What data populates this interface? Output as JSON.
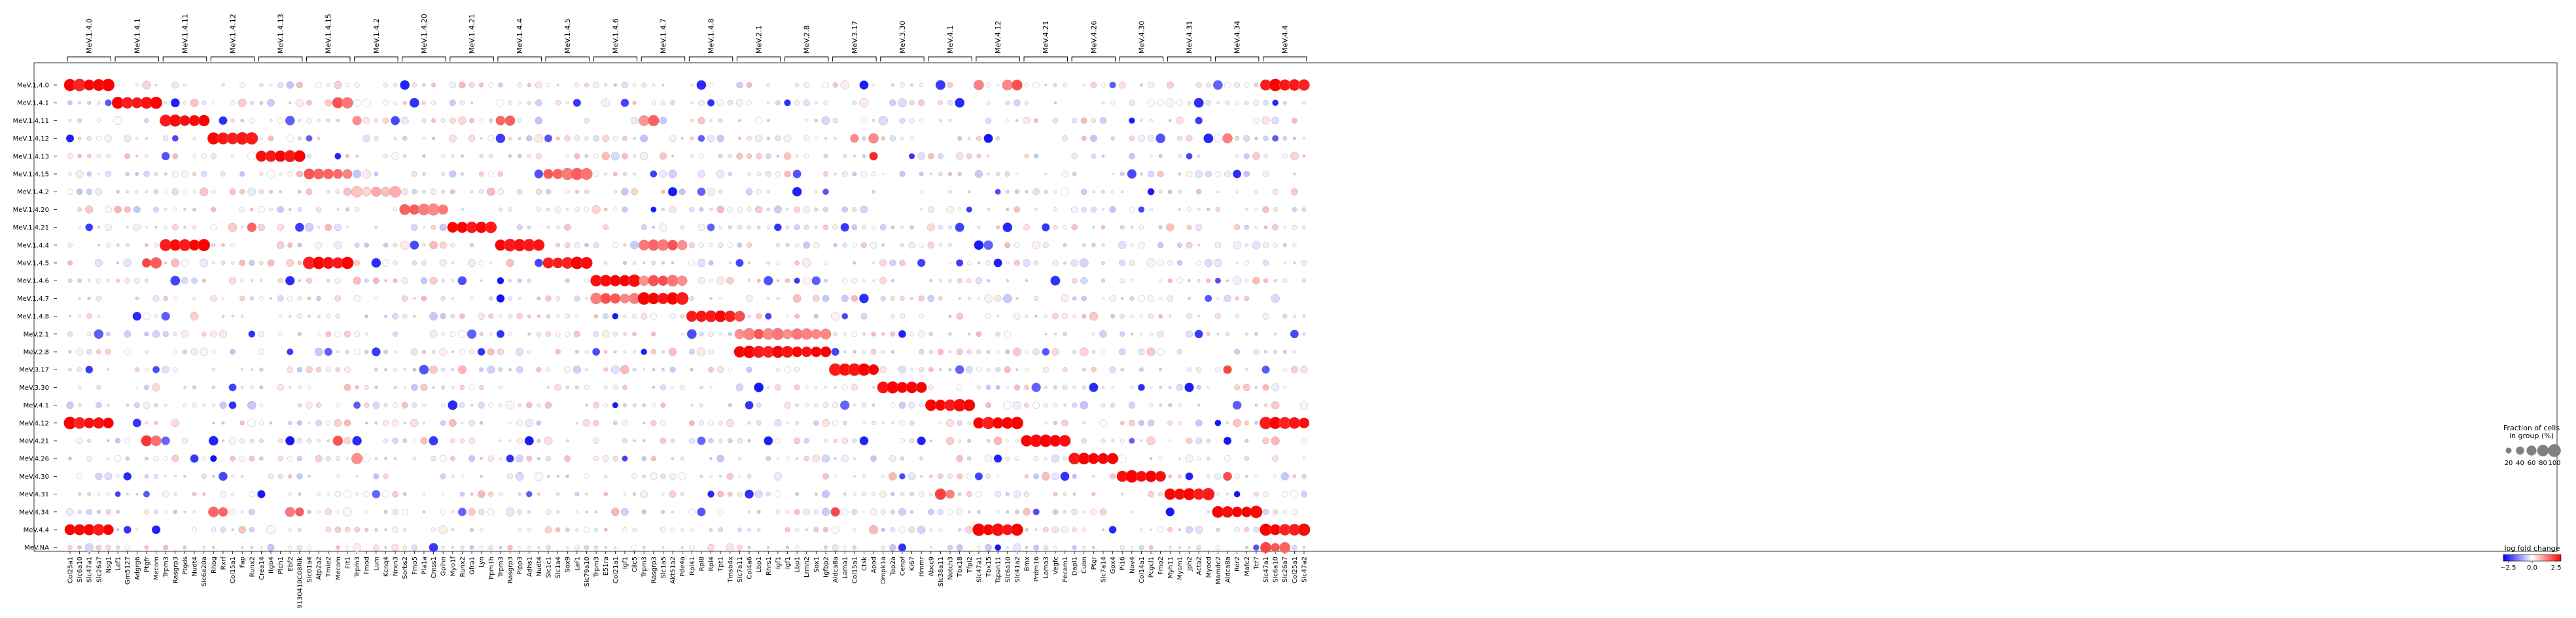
{
  "chart_data": {
    "type": "dotplot",
    "title": "",
    "xlabel": "",
    "ylabel": "",
    "rows": [
      "MeV.1.4.0",
      "MeV.1.4.1",
      "MeV.1.4.11",
      "MeV.1.4.12",
      "MeV.1.4.13",
      "MeV.1.4.15",
      "MeV.1.4.2",
      "MeV.1.4.20",
      "MeV.1.4.21",
      "MeV.1.4.4",
      "MeV.1.4.5",
      "MeV.1.4.6",
      "MeV.1.4.7",
      "MeV.1.4.8",
      "MeV.2.1",
      "MeV.2.8",
      "MeV.3.17",
      "MeV.3.30",
      "MeV.4.1",
      "MeV.4.12",
      "MeV.4.21",
      "MeV.4.26",
      "MeV.4.30",
      "MeV.4.31",
      "MeV.4.34",
      "MeV.4.4",
      "MeV.NA"
    ],
    "groups": [
      {
        "name": "MeV.1.4.0",
        "genes": [
          "Col25a1",
          "Slc6a10",
          "Slc47a1",
          "Slc26a7",
          "Nsg1"
        ]
      },
      {
        "name": "MeV.1.4.1",
        "genes": [
          "Lef1",
          "Gm5127",
          "Adgrg6",
          "Ptgfr",
          "Mecom"
        ]
      },
      {
        "name": "MeV.1.4.11",
        "genes": [
          "Trpm3",
          "Rasgrp3",
          "Ptgds",
          "Nudt4",
          "Slc6a20a"
        ]
      },
      {
        "name": "MeV.1.4.12",
        "genes": [
          "Rhbg",
          "Rxrf",
          "Col15a1",
          "Fap",
          "Runx2"
        ]
      },
      {
        "name": "MeV.1.4.13",
        "genes": [
          "Crea14",
          "Itgb4",
          "Plch1",
          "Ebf2",
          "9130410C08Rik"
        ]
      },
      {
        "name": "MeV.1.4.15",
        "genes": [
          "Slc01a4",
          "Atp2a2",
          "Tmie2",
          "Mecom",
          "Flt1"
        ]
      },
      {
        "name": "MeV.1.4.2",
        "genes": [
          "Trpm3",
          "Fmod",
          "Lum",
          "Kcnq4",
          "Nrxn3"
        ]
      },
      {
        "name": "MeV.1.4.20",
        "genes": [
          "Sorbs2",
          "Fmo5",
          "Pla1a",
          "Cmss1",
          "Gpihn"
        ]
      },
      {
        "name": "MeV.1.4.21",
        "genes": [
          "Myo1f",
          "Runx2",
          "Gfra1",
          "Lyn",
          "Ppm1h"
        ]
      },
      {
        "name": "MeV.1.4.4",
        "genes": [
          "Trpm3",
          "Rasgrp3",
          "Plpp3",
          "Adhs1",
          "Nudt4"
        ]
      },
      {
        "name": "MeV.1.4.5",
        "genes": [
          "Slc1c1",
          "Slc1a4",
          "Sox9",
          "Lef1",
          "Slc79a10"
        ]
      },
      {
        "name": "MeV.1.4.6",
        "genes": [
          "Trpm3",
          "E51ra",
          "Col21a1",
          "Igf1",
          "Cilc5"
        ]
      },
      {
        "name": "MeV.1.4.7",
        "genes": [
          "Trpm3",
          "Rasgrp3",
          "Slc1a5",
          "Akt51a2",
          "Pde4a"
        ]
      },
      {
        "name": "MeV.1.4.8",
        "genes": [
          "Rpl41",
          "Rpl8",
          "Rpl4",
          "Tpt1",
          "Tmsb4x"
        ]
      },
      {
        "name": "MeV.2.1",
        "genes": [
          "Slc7a11",
          "Col4a6",
          "Lbp1",
          "Rhrs1",
          "Igf1"
        ]
      },
      {
        "name": "MeV.2.8",
        "genes": [
          "Igf1",
          "Lbp1",
          "Lrmn2",
          "Sox1",
          "Igfbp2"
        ]
      },
      {
        "name": "MeV.3.17",
        "genes": [
          "Aldca8a",
          "Lama1",
          "Col15a1",
          "Ctsk",
          "Apod"
        ]
      },
      {
        "name": "MeV.3.30",
        "genes": [
          "Dmpk1a",
          "Top2a",
          "Cenpf",
          "Ki67",
          "Hmmr"
        ]
      },
      {
        "name": "MeV.4.1",
        "genes": [
          "Abcc9",
          "Slc38a11",
          "Notch3",
          "Tbx18",
          "Tfpi2"
        ]
      },
      {
        "name": "MeV.4.12",
        "genes": [
          "Slc47a1",
          "Tbx15",
          "Tspan11",
          "Slc6a10",
          "Slc41a2"
        ]
      },
      {
        "name": "MeV.4.21",
        "genes": [
          "Bmx",
          "Prdm16",
          "Lama3",
          "Vegfc",
          "Pecam1"
        ]
      },
      {
        "name": "MeV.4.26",
        "genes": [
          "Dapl1",
          "Cubn",
          "Ptgr",
          "Slc7a14",
          "Gpx4"
        ]
      },
      {
        "name": "MeV.4.30",
        "genes": [
          "Pi16",
          "Nov4",
          "Col14a1",
          "Pcgcl1",
          "Fmo2"
        ]
      },
      {
        "name": "MeV.4.31",
        "genes": [
          "Myh11",
          "Mysm1",
          "Jph2",
          "Acta2",
          "Myocd"
        ]
      },
      {
        "name": "MeV.4.34",
        "genes": [
          "Mamdc2",
          "Aldca8a",
          "Ror2",
          "Mafc2",
          "Tcf7"
        ]
      },
      {
        "name": "MeV.4.4",
        "genes": [
          "Slc47a1",
          "Slc6a10",
          "Slc26a7",
          "Col25a1",
          "Slc47a2"
        ]
      }
    ],
    "size_legend": {
      "title": "Fraction of cells\nin group (%)",
      "values": [
        20,
        40,
        60,
        80,
        100
      ],
      "labels": [
        "20",
        "40",
        "60",
        "80",
        "100"
      ]
    },
    "color_legend": {
      "title": "log fold change",
      "range": [
        -3,
        3
      ],
      "tick_values": [
        -2.5,
        0.0,
        2.5
      ],
      "tick_labels": [
        "−2.5",
        "0.0",
        "2.5"
      ],
      "colormap": "bwr"
    },
    "highlights": [
      {
        "row": 0,
        "group": 0,
        "mode": "strong"
      },
      {
        "row": 0,
        "group": 25,
        "mode": "strong"
      },
      {
        "row": 0,
        "group": 19,
        "mode": "partial",
        "genes": [
          0,
          3,
          4
        ]
      },
      {
        "row": 1,
        "group": 1,
        "mode": "strong"
      },
      {
        "row": 1,
        "group": 5,
        "mode": "partial",
        "genes": [
          3,
          4
        ]
      },
      {
        "row": 2,
        "group": 2,
        "mode": "strong"
      },
      {
        "row": 2,
        "group": 6,
        "mode": "partial",
        "genes": [
          0
        ]
      },
      {
        "row": 2,
        "group": 9,
        "mode": "partial",
        "genes": [
          0,
          1
        ]
      },
      {
        "row": 2,
        "group": 12,
        "mode": "partial",
        "genes": [
          0,
          1
        ]
      },
      {
        "row": 3,
        "group": 3,
        "mode": "strong"
      },
      {
        "row": 3,
        "group": 16,
        "mode": "partial",
        "genes": [
          2,
          4
        ]
      },
      {
        "row": 3,
        "group": 24,
        "mode": "partial",
        "genes": [
          1
        ]
      },
      {
        "row": 4,
        "group": 4,
        "mode": "strong"
      },
      {
        "row": 4,
        "group": 16,
        "mode": "partial",
        "genes": [
          4
        ]
      },
      {
        "row": 5,
        "group": 5,
        "mode": "medium"
      },
      {
        "row": 5,
        "group": 10,
        "mode": "medium"
      },
      {
        "row": 6,
        "group": 6,
        "mode": "light"
      },
      {
        "row": 7,
        "group": 7,
        "mode": "medium"
      },
      {
        "row": 8,
        "group": 8,
        "mode": "strong"
      },
      {
        "row": 8,
        "group": 3,
        "mode": "partial",
        "genes": [
          4
        ]
      },
      {
        "row": 9,
        "group": 9,
        "mode": "strong"
      },
      {
        "row": 9,
        "group": 2,
        "mode": "strong"
      },
      {
        "row": 9,
        "group": 12,
        "mode": "medium"
      },
      {
        "row": 10,
        "group": 10,
        "mode": "strong"
      },
      {
        "row": 10,
        "group": 5,
        "mode": "strong"
      },
      {
        "row": 10,
        "group": 1,
        "mode": "partial",
        "genes": [
          3,
          4
        ]
      },
      {
        "row": 11,
        "group": 11,
        "mode": "strong"
      },
      {
        "row": 11,
        "group": 12,
        "mode": "medium"
      },
      {
        "row": 12,
        "group": 12,
        "mode": "strong"
      },
      {
        "row": 12,
        "group": 11,
        "mode": "medium"
      },
      {
        "row": 13,
        "group": 13,
        "mode": "strong"
      },
      {
        "row": 13,
        "group": 14,
        "mode": "partial",
        "genes": [
          0
        ]
      },
      {
        "row": 14,
        "group": 14,
        "mode": "medium"
      },
      {
        "row": 14,
        "group": 15,
        "mode": "medium"
      },
      {
        "row": 15,
        "group": 15,
        "mode": "strong"
      },
      {
        "row": 15,
        "group": 14,
        "mode": "strong"
      },
      {
        "row": 16,
        "group": 16,
        "mode": "strong"
      },
      {
        "row": 16,
        "group": 24,
        "mode": "partial",
        "genes": [
          1
        ]
      },
      {
        "row": 17,
        "group": 17,
        "mode": "strong"
      },
      {
        "row": 18,
        "group": 18,
        "mode": "strong"
      },
      {
        "row": 19,
        "group": 19,
        "mode": "strong"
      },
      {
        "row": 19,
        "group": 0,
        "mode": "strong"
      },
      {
        "row": 19,
        "group": 25,
        "mode": "strong"
      },
      {
        "row": 20,
        "group": 20,
        "mode": "strong"
      },
      {
        "row": 20,
        "group": 1,
        "mode": "partial",
        "genes": [
          3,
          4
        ]
      },
      {
        "row": 20,
        "group": 5,
        "mode": "partial",
        "genes": [
          3
        ]
      },
      {
        "row": 21,
        "group": 21,
        "mode": "strong"
      },
      {
        "row": 21,
        "group": 6,
        "mode": "partial",
        "genes": [
          0
        ]
      },
      {
        "row": 22,
        "group": 22,
        "mode": "strong"
      },
      {
        "row": 22,
        "group": 24,
        "mode": "partial",
        "genes": [
          1
        ]
      },
      {
        "row": 23,
        "group": 23,
        "mode": "strong"
      },
      {
        "row": 23,
        "group": 18,
        "mode": "partial",
        "genes": [
          1,
          2
        ]
      },
      {
        "row": 24,
        "group": 24,
        "mode": "strong"
      },
      {
        "row": 24,
        "group": 3,
        "mode": "partial",
        "genes": [
          0,
          1
        ]
      },
      {
        "row": 24,
        "group": 4,
        "mode": "partial",
        "genes": [
          3,
          4
        ]
      },
      {
        "row": 24,
        "group": 16,
        "mode": "partial",
        "genes": [
          0
        ]
      },
      {
        "row": 25,
        "group": 25,
        "mode": "strong"
      },
      {
        "row": 25,
        "group": 0,
        "mode": "strong"
      },
      {
        "row": 25,
        "group": 19,
        "mode": "strong"
      },
      {
        "row": 26,
        "group": 25,
        "mode": "partial",
        "genes": [
          0,
          1,
          2
        ]
      }
    ]
  }
}
